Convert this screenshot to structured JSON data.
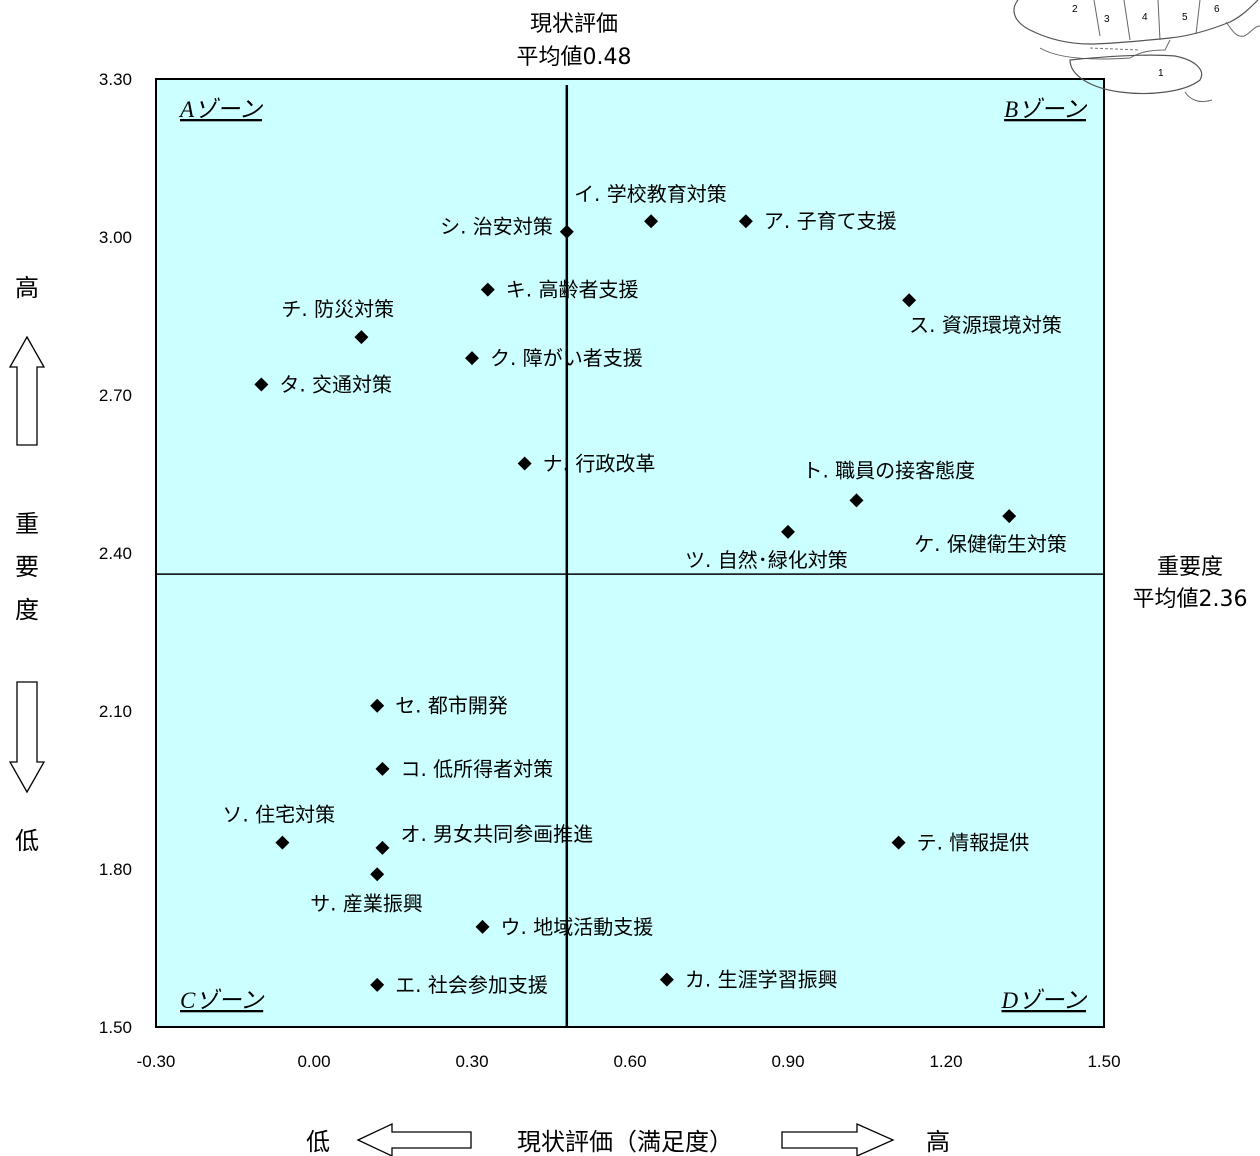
{
  "chart_data": {
    "type": "scatter",
    "xlim": [
      -0.3,
      1.5
    ],
    "ylim": [
      1.5,
      3.3
    ],
    "x_ticks": [
      "-0.30",
      "0.00",
      "0.30",
      "0.60",
      "0.90",
      "1.20",
      "1.50"
    ],
    "x_tick_values": [
      -0.3,
      0.0,
      0.3,
      0.6,
      0.9,
      1.2,
      1.5
    ],
    "y_ticks": [
      "1.50",
      "1.80",
      "2.10",
      "2.40",
      "2.70",
      "3.00",
      "3.30"
    ],
    "y_tick_values": [
      1.5,
      1.8,
      2.1,
      2.4,
      2.7,
      3.0,
      3.3
    ],
    "plot_bg_color": "#ccffff",
    "grid": false,
    "mean_x": {
      "value": 0.48,
      "label_line1": "現状評価",
      "label_line2": "平均値0.48"
    },
    "mean_y": {
      "value": 2.36,
      "label_line1": "重要度",
      "label_line2": "平均値2.36"
    },
    "zones": {
      "A": "Aゾーン",
      "B": "Bゾーン",
      "C": "Cゾーン",
      "D": "Dゾーン"
    },
    "xlabel": {
      "low": "低",
      "text": "現状評価（満足度）",
      "high": "高"
    },
    "ylabel": {
      "high": "高",
      "text": [
        "重",
        "要",
        "度"
      ],
      "low": "低"
    },
    "points": [
      {
        "label": "イ. 学校教育対策",
        "x": 0.64,
        "y": 3.03
      },
      {
        "label": "ア. 子育て支援",
        "x": 0.82,
        "y": 3.03
      },
      {
        "label": "シ. 治安対策",
        "x": 0.48,
        "y": 3.01
      },
      {
        "label": "キ. 高齢者支援",
        "x": 0.33,
        "y": 2.9
      },
      {
        "label": "ス. 資源環境対策",
        "x": 1.13,
        "y": 2.88
      },
      {
        "label": "チ. 防災対策",
        "x": 0.09,
        "y": 2.81
      },
      {
        "label": "ク. 障がい者支援",
        "x": 0.3,
        "y": 2.77
      },
      {
        "label": "タ. 交通対策",
        "x": -0.1,
        "y": 2.72
      },
      {
        "label": "ナ. 行政改革",
        "x": 0.4,
        "y": 2.57
      },
      {
        "label": "ト. 職員の接客態度",
        "x": 1.03,
        "y": 2.5
      },
      {
        "label": "ケ. 保健衛生対策",
        "x": 1.32,
        "y": 2.47
      },
      {
        "label": "ツ. 自然･緑化対策",
        "x": 0.9,
        "y": 2.44
      },
      {
        "label": "セ. 都市開発",
        "x": 0.12,
        "y": 2.11
      },
      {
        "label": "コ. 低所得者対策",
        "x": 0.13,
        "y": 1.99
      },
      {
        "label": "ソ. 住宅対策",
        "x": -0.06,
        "y": 1.85
      },
      {
        "label": "オ. 男女共同参画推進",
        "x": 0.13,
        "y": 1.84
      },
      {
        "label": "テ. 情報提供",
        "x": 1.11,
        "y": 1.85
      },
      {
        "label": "サ. 産業振興",
        "x": 0.12,
        "y": 1.79
      },
      {
        "label": "ウ. 地域活動支援",
        "x": 0.32,
        "y": 1.69
      },
      {
        "label": "カ. 生涯学習振興",
        "x": 0.67,
        "y": 1.59
      },
      {
        "label": "エ. 社会参加支援",
        "x": 0.12,
        "y": 1.58
      }
    ]
  },
  "map_thumbnail": {
    "region_numbers": [
      "1",
      "2",
      "3",
      "4",
      "5",
      "6"
    ]
  }
}
